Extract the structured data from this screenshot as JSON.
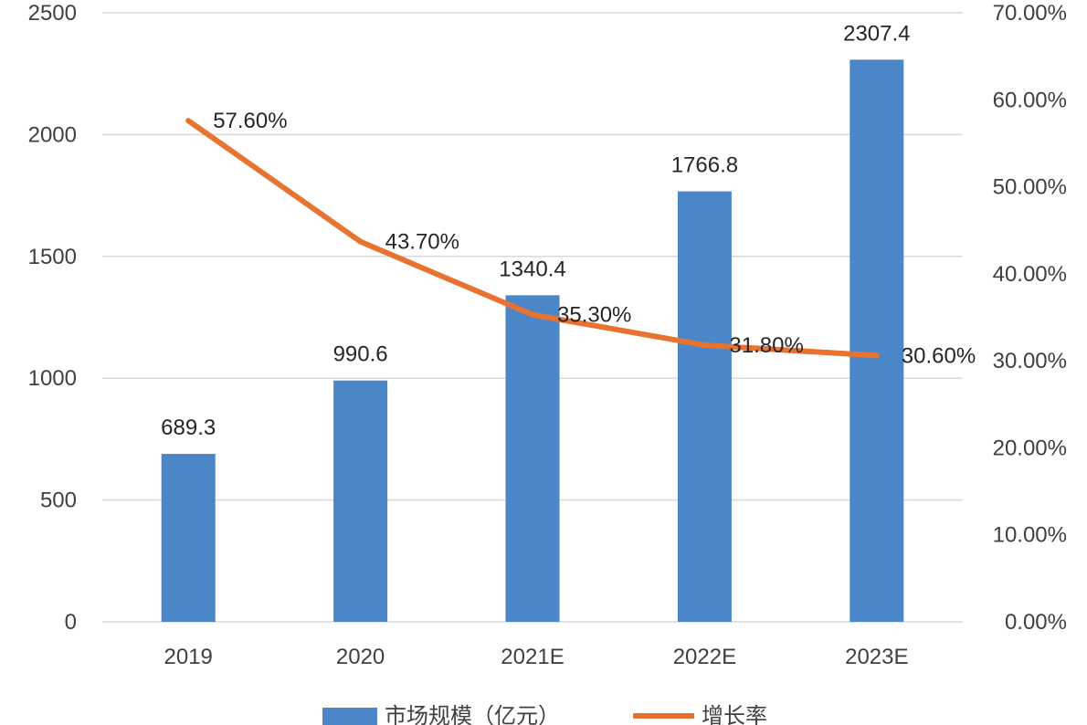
{
  "chart_data": {
    "type": "bar",
    "categories": [
      "2019",
      "2020",
      "2021E",
      "2022E",
      "2023E"
    ],
    "series": [
      {
        "name": "市场规模（亿元）",
        "type": "bar",
        "axis": "left",
        "color": "#4A86C8",
        "values": [
          689.3,
          990.6,
          1340.4,
          1766.8,
          2307.4
        ],
        "labels": [
          "689.3",
          "990.6",
          "1340.4",
          "1766.8",
          "2307.4"
        ]
      },
      {
        "name": "增长率",
        "type": "line",
        "axis": "right",
        "color": "#E87330",
        "values": [
          57.6,
          43.7,
          35.3,
          31.8,
          30.6
        ],
        "labels": [
          "57.60%",
          "43.70%",
          "35.30%",
          "31.80%",
          "30.60%"
        ]
      }
    ],
    "y_left": {
      "min": 0,
      "max": 2500,
      "ticks": [
        "0",
        "500",
        "1000",
        "1500",
        "2000",
        "2500"
      ]
    },
    "y_right": {
      "min": 0,
      "max": 70,
      "ticks": [
        "0.00%",
        "10.00%",
        "20.00%",
        "30.00%",
        "40.00%",
        "50.00%",
        "60.00%",
        "70.00%"
      ]
    },
    "grid": true,
    "legend_position": "bottom",
    "title": "",
    "xlabel": "",
    "ylabel": ""
  }
}
